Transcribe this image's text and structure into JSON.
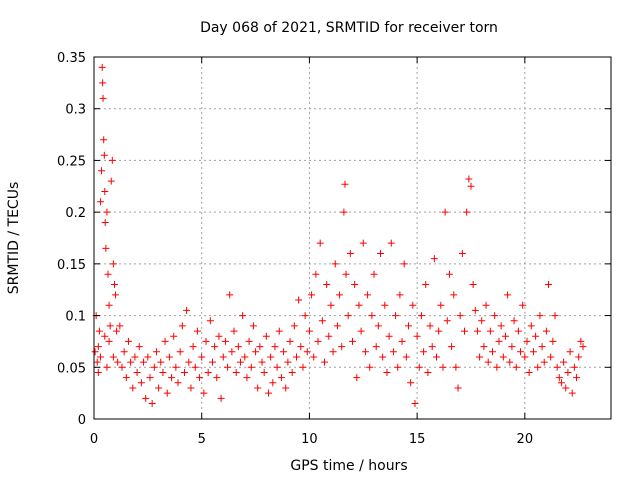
{
  "chart_data": {
    "type": "scatter",
    "title": "Day 068 of 2021, SRMTID for receiver torn",
    "xlabel": "GPS time / hours",
    "ylabel": "SRMTID / TECUs",
    "xlim": [
      0,
      24
    ],
    "ylim": [
      0,
      0.35
    ],
    "xticks": [
      0,
      5,
      10,
      15,
      20
    ],
    "xtick_labels": [
      "0",
      "5",
      "10",
      "15",
      "20"
    ],
    "yticks": [
      0,
      0.05,
      0.1,
      0.15,
      0.2,
      0.25,
      0.3,
      0.35
    ],
    "ytick_labels": [
      "0",
      "0.05",
      "0.1",
      "0.15",
      "0.2",
      "0.25",
      "0.3",
      "0.35"
    ],
    "grid": true,
    "marker": "+",
    "color": "#ff0000",
    "series": [
      {
        "name": "SRMTID",
        "points": [
          [
            0.05,
            0.065
          ],
          [
            0.1,
            0.1
          ],
          [
            0.15,
            0.055
          ],
          [
            0.2,
            0.045
          ],
          [
            0.25,
            0.085
          ],
          [
            0.3,
            0.21
          ],
          [
            0.35,
            0.24
          ],
          [
            0.38,
            0.34
          ],
          [
            0.4,
            0.325
          ],
          [
            0.42,
            0.31
          ],
          [
            0.45,
            0.27
          ],
          [
            0.48,
            0.255
          ],
          [
            0.5,
            0.22
          ],
          [
            0.52,
            0.19
          ],
          [
            0.55,
            0.165
          ],
          [
            0.6,
            0.2
          ],
          [
            0.65,
            0.14
          ],
          [
            0.7,
            0.11
          ],
          [
            0.75,
            0.09
          ],
          [
            0.8,
            0.23
          ],
          [
            0.85,
            0.25
          ],
          [
            0.9,
            0.15
          ],
          [
            0.95,
            0.13
          ],
          [
            1.0,
            0.12
          ],
          [
            1.05,
            0.085
          ],
          [
            0.2,
            0.07
          ],
          [
            0.3,
            0.06
          ],
          [
            0.5,
            0.08
          ],
          [
            0.6,
            0.05
          ],
          [
            0.7,
            0.075
          ],
          [
            0.9,
            0.06
          ],
          [
            1.1,
            0.055
          ],
          [
            1.2,
            0.09
          ],
          [
            1.3,
            0.05
          ],
          [
            1.4,
            0.065
          ],
          [
            1.5,
            0.04
          ],
          [
            1.6,
            0.075
          ],
          [
            1.7,
            0.055
          ],
          [
            1.8,
            0.03
          ],
          [
            1.9,
            0.06
          ],
          [
            2.0,
            0.045
          ],
          [
            2.1,
            0.07
          ],
          [
            2.2,
            0.035
          ],
          [
            2.3,
            0.055
          ],
          [
            2.4,
            0.02
          ],
          [
            2.5,
            0.06
          ],
          [
            2.6,
            0.04
          ],
          [
            2.7,
            0.015
          ],
          [
            2.8,
            0.05
          ],
          [
            2.9,
            0.065
          ],
          [
            3.0,
            0.03
          ],
          [
            3.1,
            0.055
          ],
          [
            3.2,
            0.045
          ],
          [
            3.3,
            0.075
          ],
          [
            3.4,
            0.025
          ],
          [
            3.5,
            0.06
          ],
          [
            3.6,
            0.04
          ],
          [
            3.7,
            0.08
          ],
          [
            3.8,
            0.05
          ],
          [
            3.9,
            0.035
          ],
          [
            4.0,
            0.065
          ],
          [
            4.1,
            0.09
          ],
          [
            4.2,
            0.045
          ],
          [
            4.3,
            0.105
          ],
          [
            4.4,
            0.055
          ],
          [
            4.5,
            0.03
          ],
          [
            4.6,
            0.07
          ],
          [
            4.7,
            0.05
          ],
          [
            4.8,
            0.085
          ],
          [
            4.9,
            0.04
          ],
          [
            5.0,
            0.06
          ],
          [
            5.1,
            0.025
          ],
          [
            5.2,
            0.075
          ],
          [
            5.3,
            0.045
          ],
          [
            5.4,
            0.095
          ],
          [
            5.5,
            0.055
          ],
          [
            5.6,
            0.07
          ],
          [
            5.7,
            0.04
          ],
          [
            5.8,
            0.08
          ],
          [
            5.9,
            0.02
          ],
          [
            6.0,
            0.06
          ],
          [
            6.1,
            0.075
          ],
          [
            6.2,
            0.05
          ],
          [
            6.3,
            0.12
          ],
          [
            6.4,
            0.065
          ],
          [
            6.5,
            0.085
          ],
          [
            6.6,
            0.045
          ],
          [
            6.7,
            0.07
          ],
          [
            6.8,
            0.055
          ],
          [
            6.9,
            0.1
          ],
          [
            7.0,
            0.06
          ],
          [
            7.1,
            0.04
          ],
          [
            7.2,
            0.075
          ],
          [
            7.3,
            0.05
          ],
          [
            7.4,
            0.09
          ],
          [
            7.5,
            0.065
          ],
          [
            7.6,
            0.03
          ],
          [
            7.7,
            0.07
          ],
          [
            7.8,
            0.055
          ],
          [
            7.9,
            0.045
          ],
          [
            8.0,
            0.08
          ],
          [
            8.1,
            0.025
          ],
          [
            8.2,
            0.06
          ],
          [
            8.3,
            0.035
          ],
          [
            8.4,
            0.07
          ],
          [
            8.5,
            0.05
          ],
          [
            8.6,
            0.085
          ],
          [
            8.7,
            0.04
          ],
          [
            8.8,
            0.065
          ],
          [
            8.9,
            0.03
          ],
          [
            9.0,
            0.055
          ],
          [
            9.1,
            0.075
          ],
          [
            9.2,
            0.045
          ],
          [
            9.3,
            0.09
          ],
          [
            9.4,
            0.06
          ],
          [
            9.5,
            0.115
          ],
          [
            9.6,
            0.07
          ],
          [
            9.7,
            0.05
          ],
          [
            9.8,
            0.1
          ],
          [
            9.9,
            0.065
          ],
          [
            10.0,
            0.085
          ],
          [
            10.1,
            0.12
          ],
          [
            10.2,
            0.06
          ],
          [
            10.3,
            0.14
          ],
          [
            10.4,
            0.075
          ],
          [
            10.5,
            0.17
          ],
          [
            10.6,
            0.095
          ],
          [
            10.7,
            0.055
          ],
          [
            10.8,
            0.13
          ],
          [
            10.9,
            0.08
          ],
          [
            11.0,
            0.11
          ],
          [
            11.1,
            0.065
          ],
          [
            11.2,
            0.15
          ],
          [
            11.3,
            0.09
          ],
          [
            11.4,
            0.12
          ],
          [
            11.5,
            0.07
          ],
          [
            11.6,
            0.2
          ],
          [
            11.65,
            0.227
          ],
          [
            11.7,
            0.14
          ],
          [
            11.8,
            0.1
          ],
          [
            11.9,
            0.16
          ],
          [
            12.0,
            0.075
          ],
          [
            12.1,
            0.13
          ],
          [
            12.2,
            0.04
          ],
          [
            12.3,
            0.11
          ],
          [
            12.4,
            0.085
          ],
          [
            12.5,
            0.17
          ],
          [
            12.6,
            0.065
          ],
          [
            12.7,
            0.12
          ],
          [
            12.8,
            0.05
          ],
          [
            12.9,
            0.1
          ],
          [
            13.0,
            0.14
          ],
          [
            13.1,
            0.07
          ],
          [
            13.2,
            0.09
          ],
          [
            13.3,
            0.16
          ],
          [
            13.4,
            0.06
          ],
          [
            13.5,
            0.11
          ],
          [
            13.6,
            0.045
          ],
          [
            13.7,
            0.08
          ],
          [
            13.8,
            0.17
          ],
          [
            13.9,
            0.065
          ],
          [
            14.0,
            0.1
          ],
          [
            14.1,
            0.05
          ],
          [
            14.2,
            0.12
          ],
          [
            14.3,
            0.075
          ],
          [
            14.4,
            0.15
          ],
          [
            14.5,
            0.06
          ],
          [
            14.6,
            0.09
          ],
          [
            14.7,
            0.035
          ],
          [
            14.8,
            0.11
          ],
          [
            14.9,
            0.015
          ],
          [
            15.0,
            0.08
          ],
          [
            15.1,
            0.05
          ],
          [
            15.2,
            0.1
          ],
          [
            15.3,
            0.065
          ],
          [
            15.4,
            0.13
          ],
          [
            15.5,
            0.045
          ],
          [
            15.6,
            0.09
          ],
          [
            15.7,
            0.07
          ],
          [
            15.8,
            0.155
          ],
          [
            15.9,
            0.06
          ],
          [
            16.0,
            0.085
          ],
          [
            16.1,
            0.11
          ],
          [
            16.2,
            0.05
          ],
          [
            16.3,
            0.2
          ],
          [
            16.4,
            0.095
          ],
          [
            16.5,
            0.14
          ],
          [
            16.6,
            0.07
          ],
          [
            16.7,
            0.12
          ],
          [
            16.8,
            0.05
          ],
          [
            16.9,
            0.03
          ],
          [
            17.0,
            0.1
          ],
          [
            17.1,
            0.16
          ],
          [
            17.2,
            0.085
          ],
          [
            17.3,
            0.2
          ],
          [
            17.4,
            0.232
          ],
          [
            17.5,
            0.225
          ],
          [
            17.6,
            0.13
          ],
          [
            17.7,
            0.105
          ],
          [
            17.8,
            0.085
          ],
          [
            17.9,
            0.06
          ],
          [
            18.0,
            0.095
          ],
          [
            18.1,
            0.07
          ],
          [
            18.2,
            0.11
          ],
          [
            18.3,
            0.055
          ],
          [
            18.4,
            0.085
          ],
          [
            18.5,
            0.065
          ],
          [
            18.6,
            0.1
          ],
          [
            18.7,
            0.05
          ],
          [
            18.8,
            0.075
          ],
          [
            18.9,
            0.09
          ],
          [
            19.0,
            0.06
          ],
          [
            19.1,
            0.08
          ],
          [
            19.2,
            0.12
          ],
          [
            19.3,
            0.055
          ],
          [
            19.4,
            0.07
          ],
          [
            19.5,
            0.095
          ],
          [
            19.6,
            0.05
          ],
          [
            19.7,
            0.085
          ],
          [
            19.8,
            0.065
          ],
          [
            19.9,
            0.11
          ],
          [
            20.0,
            0.06
          ],
          [
            20.1,
            0.075
          ],
          [
            20.2,
            0.045
          ],
          [
            20.3,
            0.09
          ],
          [
            20.4,
            0.065
          ],
          [
            20.5,
            0.08
          ],
          [
            20.6,
            0.05
          ],
          [
            20.7,
            0.1
          ],
          [
            20.8,
            0.07
          ],
          [
            20.9,
            0.055
          ],
          [
            21.0,
            0.085
          ],
          [
            21.1,
            0.13
          ],
          [
            21.2,
            0.06
          ],
          [
            21.3,
            0.075
          ],
          [
            21.4,
            0.1
          ],
          [
            21.5,
            0.05
          ],
          [
            21.6,
            0.04
          ],
          [
            21.7,
            0.035
          ],
          [
            21.8,
            0.055
          ],
          [
            21.9,
            0.03
          ],
          [
            22.0,
            0.045
          ],
          [
            22.1,
            0.065
          ],
          [
            22.2,
            0.025
          ],
          [
            22.3,
            0.05
          ],
          [
            22.4,
            0.04
          ],
          [
            22.5,
            0.06
          ],
          [
            22.6,
            0.075
          ],
          [
            22.7,
            0.07
          ]
        ]
      }
    ]
  }
}
